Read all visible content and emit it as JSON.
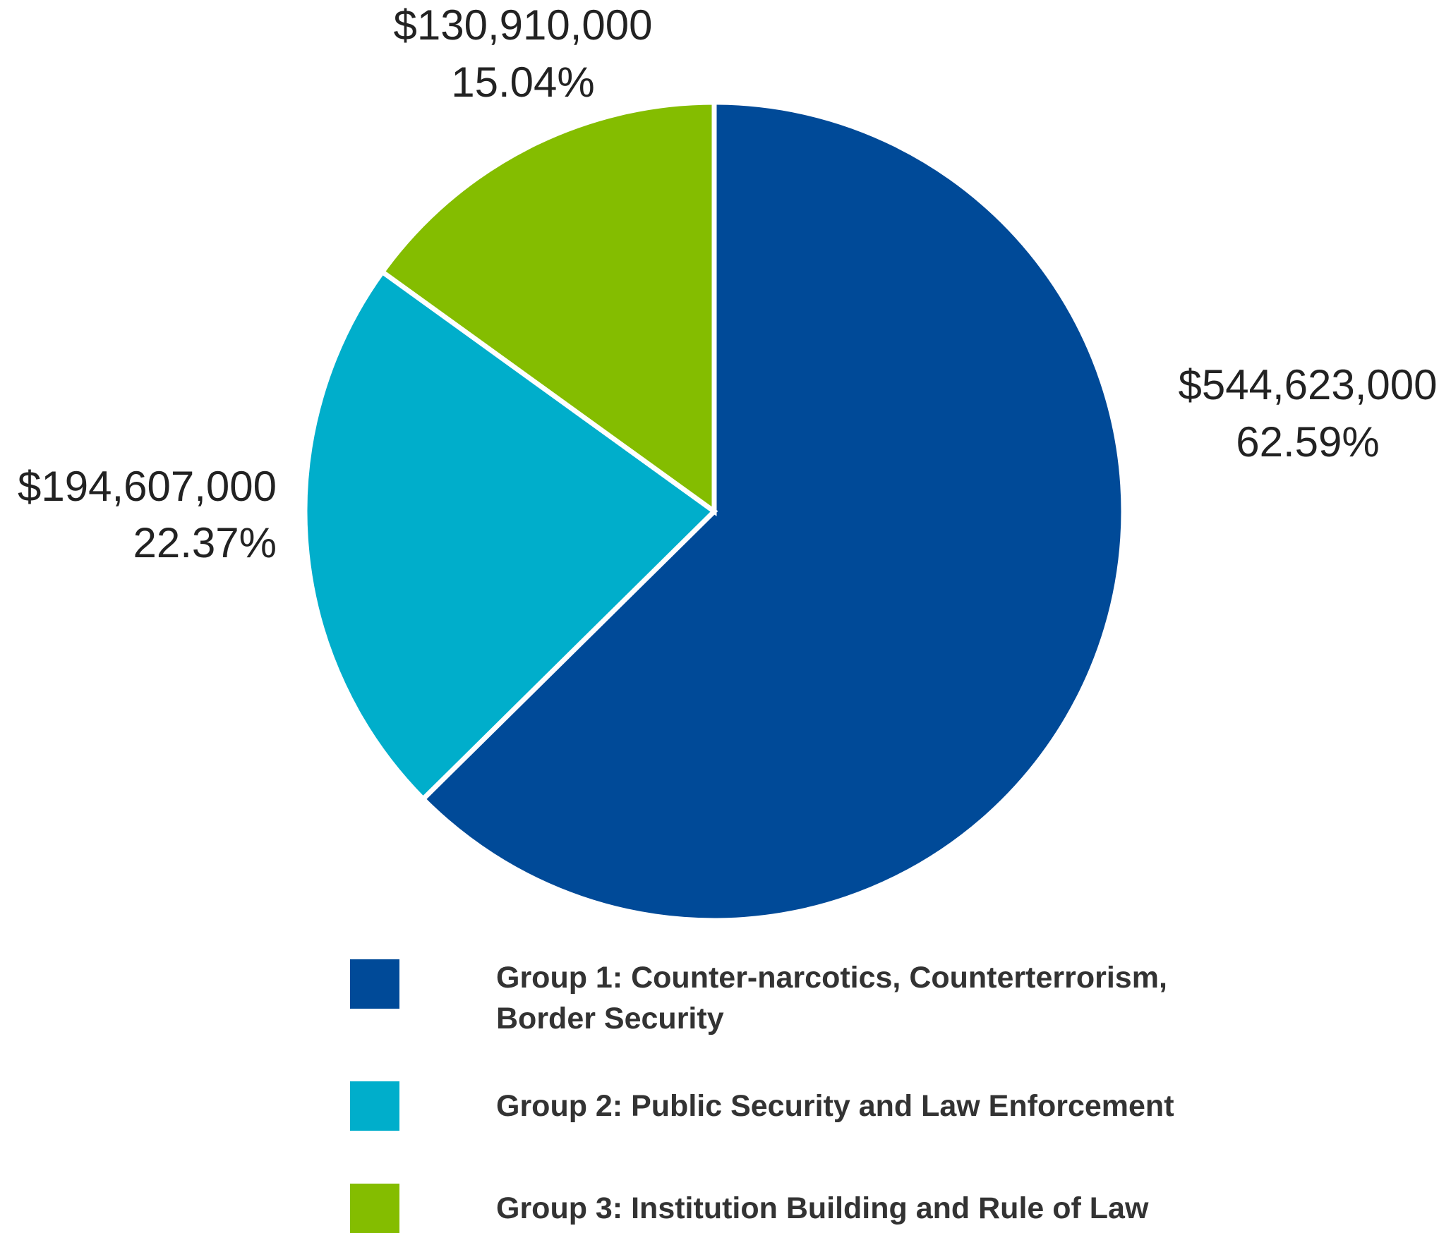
{
  "chart_data": {
    "type": "pie",
    "start_angle_deg": 0,
    "direction": "clockwise",
    "slices": [
      {
        "name": "Group 1: Counter-narcotics, Counterterrorism, Border Security",
        "value": 544623000,
        "value_label": "$544,623,000",
        "percent": 62.59,
        "percent_label": "62.59%",
        "color": "#004a98"
      },
      {
        "name": "Group 2: Public Security and Law Enforcement",
        "value": 194607000,
        "value_label": "$194,607,000",
        "percent": 22.37,
        "percent_label": "22.37%",
        "color": "#00aecb"
      },
      {
        "name": "Group 3: Institution Building and Rule of Law",
        "value": 130910000,
        "value_label": "$130,910,000",
        "percent": 15.04,
        "percent_label": "15.04%",
        "color": "#84bd00"
      }
    ],
    "legend": {
      "placement": "bottom",
      "items": [
        {
          "label": "Group 1: Counter-narcotics, Counterterrorism, Border Security",
          "color": "#004a98"
        },
        {
          "label": "Group 2: Public Security and Law Enforcement",
          "color": "#00aecb"
        },
        {
          "label": "Group 3: Institution Building and Rule of Law",
          "color": "#84bd00"
        }
      ]
    }
  }
}
